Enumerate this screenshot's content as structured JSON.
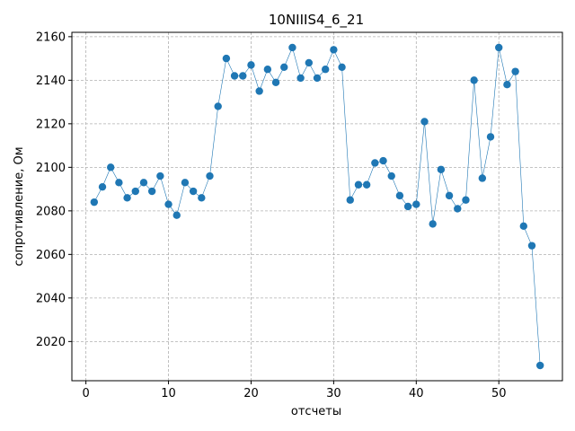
{
  "chart_data": {
    "type": "line",
    "title": "10NIIIS4_6_21",
    "xlabel": "отсчеты",
    "ylabel": "сопротивление, Ом",
    "xlim": [
      -1.7,
      57.7
    ],
    "ylim": [
      2002,
      2162
    ],
    "xticks": [
      0,
      10,
      20,
      30,
      40,
      50
    ],
    "yticks": [
      2020,
      2040,
      2060,
      2080,
      2100,
      2120,
      2140,
      2160
    ],
    "grid": true,
    "line_color": "#1f77b4",
    "series": [
      {
        "x": [
          1,
          2,
          3,
          4,
          5,
          6,
          7,
          8,
          9,
          10,
          11,
          12,
          13,
          14,
          15,
          16,
          17,
          18,
          19,
          20,
          21,
          22,
          23,
          24,
          25,
          26,
          27,
          28,
          29,
          30,
          31,
          32,
          33,
          34,
          35,
          36,
          37,
          38,
          39,
          40,
          41,
          42,
          43,
          44,
          45,
          46,
          47,
          48,
          49,
          50,
          51,
          52,
          53,
          54,
          55
        ],
        "values": [
          2084,
          2091,
          2100,
          2093,
          2086,
          2089,
          2093,
          2089,
          2096,
          2083,
          2078,
          2093,
          2089,
          2086,
          2096,
          2128,
          2150,
          2142,
          2142,
          2147,
          2135,
          2145,
          2139,
          2146,
          2155,
          2141,
          2148,
          2141,
          2145,
          2154,
          2146,
          2085,
          2092,
          2092,
          2102,
          2103,
          2096,
          2087,
          2082,
          2083,
          2121,
          2074,
          2099,
          2087,
          2081,
          2085,
          2140,
          2095,
          2114,
          2155,
          2138,
          2144,
          2073,
          2064,
          2009
        ]
      }
    ]
  }
}
